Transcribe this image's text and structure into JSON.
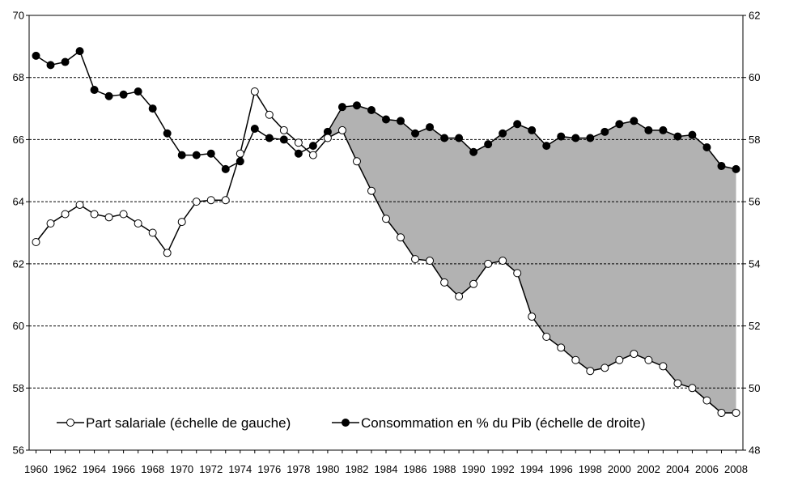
{
  "chart_data": {
    "type": "line",
    "title": "",
    "xlabel": "",
    "ylabel_left": "",
    "ylabel_right": "",
    "x": [
      1960,
      1961,
      1962,
      1963,
      1964,
      1965,
      1966,
      1967,
      1968,
      1969,
      1970,
      1971,
      1972,
      1973,
      1974,
      1975,
      1976,
      1977,
      1978,
      1979,
      1980,
      1981,
      1982,
      1983,
      1984,
      1985,
      1986,
      1987,
      1988,
      1989,
      1990,
      1991,
      1992,
      1993,
      1994,
      1995,
      1996,
      1997,
      1998,
      1999,
      2000,
      2001,
      2002,
      2003,
      2004,
      2005,
      2006,
      2007,
      2008
    ],
    "xlim": [
      1960,
      2008
    ],
    "x_tick_labels": [
      "1960",
      "1962",
      "1964",
      "1966",
      "1968",
      "1970",
      "1972",
      "1974",
      "1976",
      "1978",
      "1980",
      "1982",
      "1984",
      "1986",
      "1988",
      "1990",
      "1992",
      "1994",
      "1996",
      "1998",
      "2000",
      "2002",
      "2004",
      "2006",
      "2008"
    ],
    "ylim_left": [
      56,
      70
    ],
    "ylim_right": [
      48,
      62
    ],
    "y_tick_labels_left": [
      "56",
      "58",
      "60",
      "62",
      "64",
      "66",
      "68",
      "70"
    ],
    "y_tick_labels_right": [
      "48",
      "50",
      "52",
      "54",
      "56",
      "58",
      "60",
      "62"
    ],
    "grid": "horizontal dashed",
    "legend_position": "bottom",
    "shaded_region": "between series where consommation exceeds part salariale (1981-2008)",
    "series": [
      {
        "name": "Part salariale (échelle de gauche)",
        "axis": "left",
        "marker": "open-circle",
        "color": "#000000",
        "values": [
          62.7,
          63.3,
          63.6,
          63.9,
          63.6,
          63.5,
          63.6,
          63.3,
          63.0,
          62.35,
          63.35,
          64.0,
          64.05,
          64.05,
          65.55,
          67.55,
          66.8,
          66.3,
          65.9,
          65.5,
          66.05,
          66.3,
          65.3,
          64.35,
          63.45,
          62.85,
          62.15,
          62.1,
          61.4,
          60.95,
          61.35,
          62.0,
          62.1,
          61.7,
          60.3,
          59.65,
          59.3,
          58.9,
          58.55,
          58.65,
          58.9,
          59.1,
          58.9,
          58.7,
          58.15,
          58.0,
          57.6,
          57.2,
          57.2
        ]
      },
      {
        "name": "Consommation en % du Pib (échelle de droite)",
        "axis": "right",
        "marker": "filled-circle",
        "color": "#000000",
        "values": [
          60.7,
          60.4,
          60.5,
          60.85,
          59.6,
          59.4,
          59.45,
          59.55,
          59.0,
          58.2,
          57.5,
          57.5,
          57.55,
          57.05,
          57.3,
          58.35,
          58.05,
          58.0,
          57.55,
          57.8,
          58.25,
          59.05,
          59.1,
          58.95,
          58.65,
          58.6,
          58.2,
          58.4,
          58.05,
          58.05,
          57.6,
          57.85,
          58.2,
          58.5,
          58.3,
          57.8,
          58.1,
          58.05,
          58.05,
          58.25,
          58.5,
          58.6,
          58.3,
          58.3,
          58.1,
          58.15,
          57.75,
          57.15,
          57.05
        ]
      }
    ],
    "shade_color": "#b2b2b2"
  }
}
